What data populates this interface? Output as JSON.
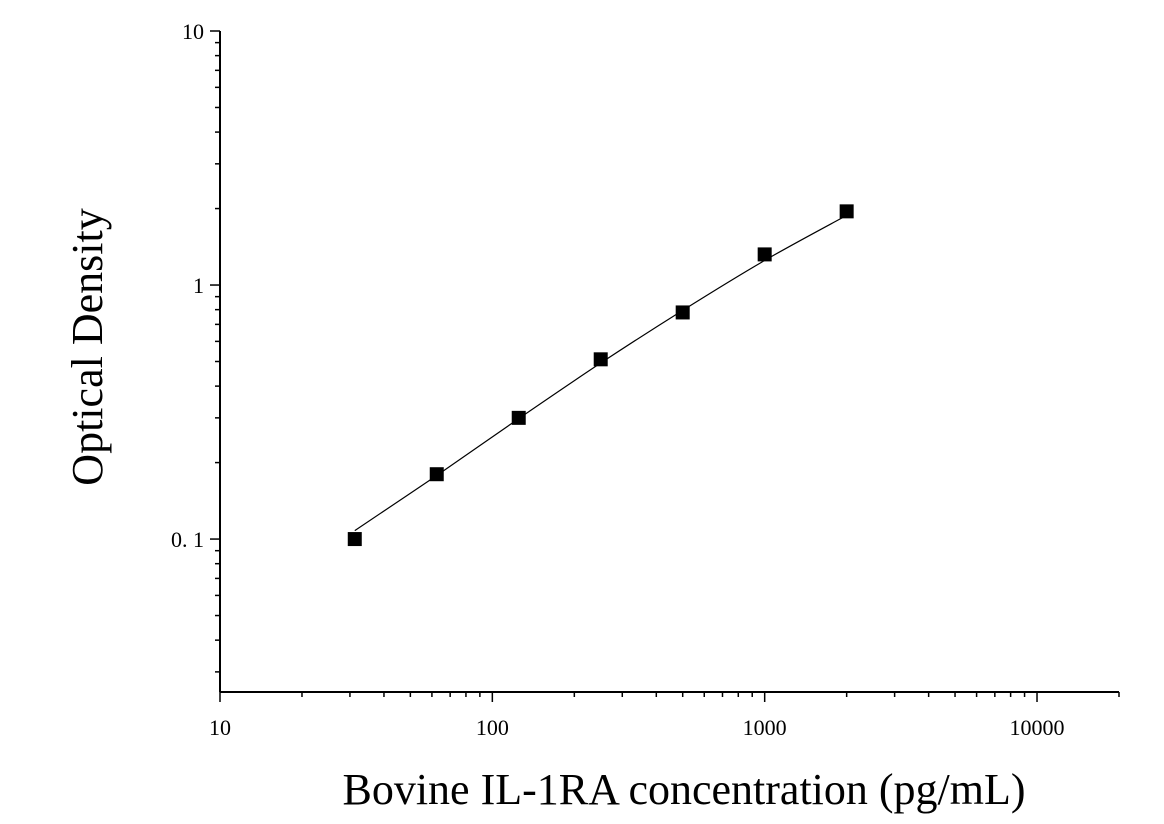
{
  "chart_data": {
    "type": "scatter",
    "title": "",
    "xlabel": "Bovine IL-1RA concentration (pg/mL)",
    "ylabel": "Optical Density",
    "x_scale": "log",
    "y_scale": "log",
    "xlim": [
      10,
      20000
    ],
    "ylim": [
      0.025,
      10
    ],
    "x_ticks": [
      {
        "value": 10,
        "label": "10"
      },
      {
        "value": 100,
        "label": "100"
      },
      {
        "value": 1000,
        "label": "1000"
      },
      {
        "value": 10000,
        "label": "10000"
      }
    ],
    "y_ticks": [
      {
        "value": 0.1,
        "label": "0. 1"
      },
      {
        "value": 1,
        "label": "1"
      },
      {
        "value": 10,
        "label": "10"
      }
    ],
    "grid": false,
    "legend": "none",
    "series": [
      {
        "marker": "square",
        "color": "#000000",
        "x": [
          31.25,
          62.5,
          125,
          250,
          500,
          1000,
          2000
        ],
        "y": [
          0.1,
          0.18,
          0.3,
          0.51,
          0.78,
          1.32,
          1.95
        ]
      }
    ],
    "fit_curve": {
      "color": "#000000",
      "x": [
        31.25,
        62.5,
        125,
        250,
        500,
        1000,
        2000
      ],
      "y": [
        0.108,
        0.178,
        0.298,
        0.493,
        0.795,
        1.25,
        1.88
      ]
    }
  }
}
